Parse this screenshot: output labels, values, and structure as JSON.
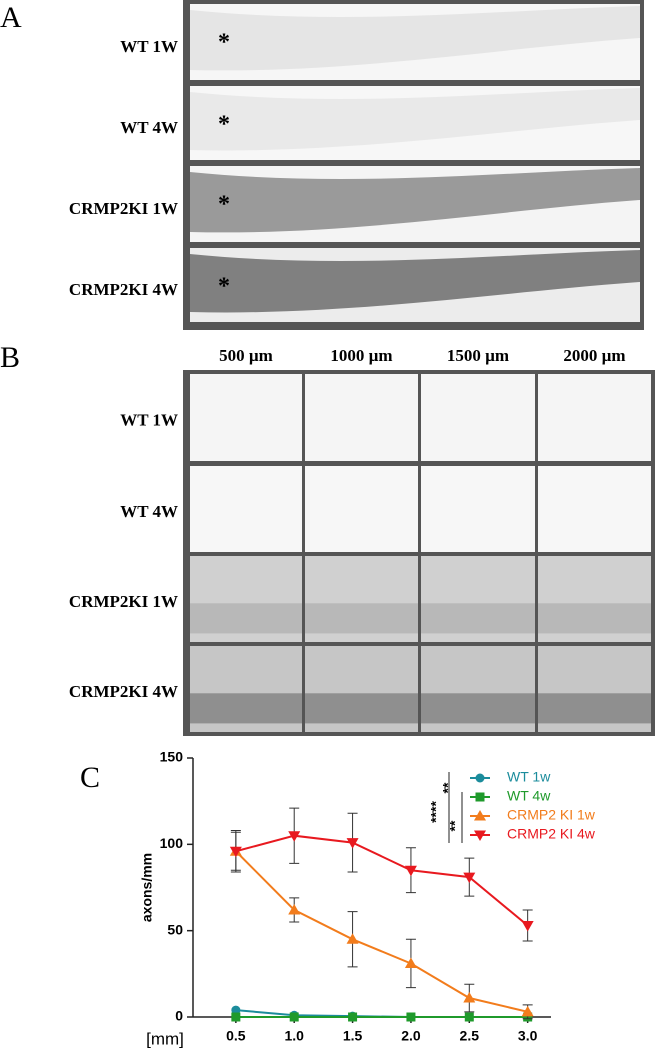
{
  "panel_a": {
    "label": "A",
    "rows": [
      "WT 1W",
      "WT 4W",
      "CRMP2KI 1W",
      "CRMP2KI 4W"
    ],
    "injury_mark": "*"
  },
  "panel_b": {
    "label": "B",
    "columns": [
      "500 µm",
      "1000 µm",
      "1500 µm",
      "2000 µm"
    ],
    "rows": [
      "WT 1W",
      "WT 4W",
      "CRMP2KI 1W",
      "CRMP2KI 4W"
    ]
  },
  "chart_data": {
    "type": "line",
    "label": "C",
    "xlabel": "[mm]",
    "ylabel": "axons/mm",
    "x": [
      0.5,
      1.0,
      1.5,
      2.0,
      2.5,
      3.0
    ],
    "xlim": [
      0.15,
      3.2
    ],
    "ylim": [
      0,
      150
    ],
    "xticks": [
      0.5,
      {
        "value": 1,
        "label": "1.0"
      },
      1.5,
      {
        "value": 2,
        "label": "2.0"
      },
      2.5,
      {
        "value": 3,
        "label": "3.0"
      }
    ],
    "yticks": [
      0,
      50,
      100,
      150
    ],
    "series": [
      {
        "name": "WT 1w",
        "color": "#1b8c9c",
        "marker": "circle",
        "values": [
          4,
          1,
          0.5,
          0,
          0,
          0
        ]
      },
      {
        "name": "WT 4w",
        "color": "#1f9a2b",
        "marker": "square",
        "values": [
          0,
          0,
          0,
          0,
          0,
          0
        ]
      },
      {
        "name": "CRMP2 KI 1w",
        "color": "#f27c1c",
        "marker": "triangle-up",
        "values": [
          96,
          62,
          45,
          31,
          11,
          3
        ],
        "errors": [
          12,
          7,
          16,
          14,
          8,
          4
        ]
      },
      {
        "name": "CRMP2 KI 4w",
        "color": "#e8191f",
        "marker": "triangle-down",
        "values": [
          96,
          105,
          101,
          85,
          81,
          53
        ],
        "errors": [
          11,
          16,
          17,
          13,
          11,
          9
        ]
      }
    ],
    "annotations": [
      "****",
      "**",
      "**"
    ]
  }
}
